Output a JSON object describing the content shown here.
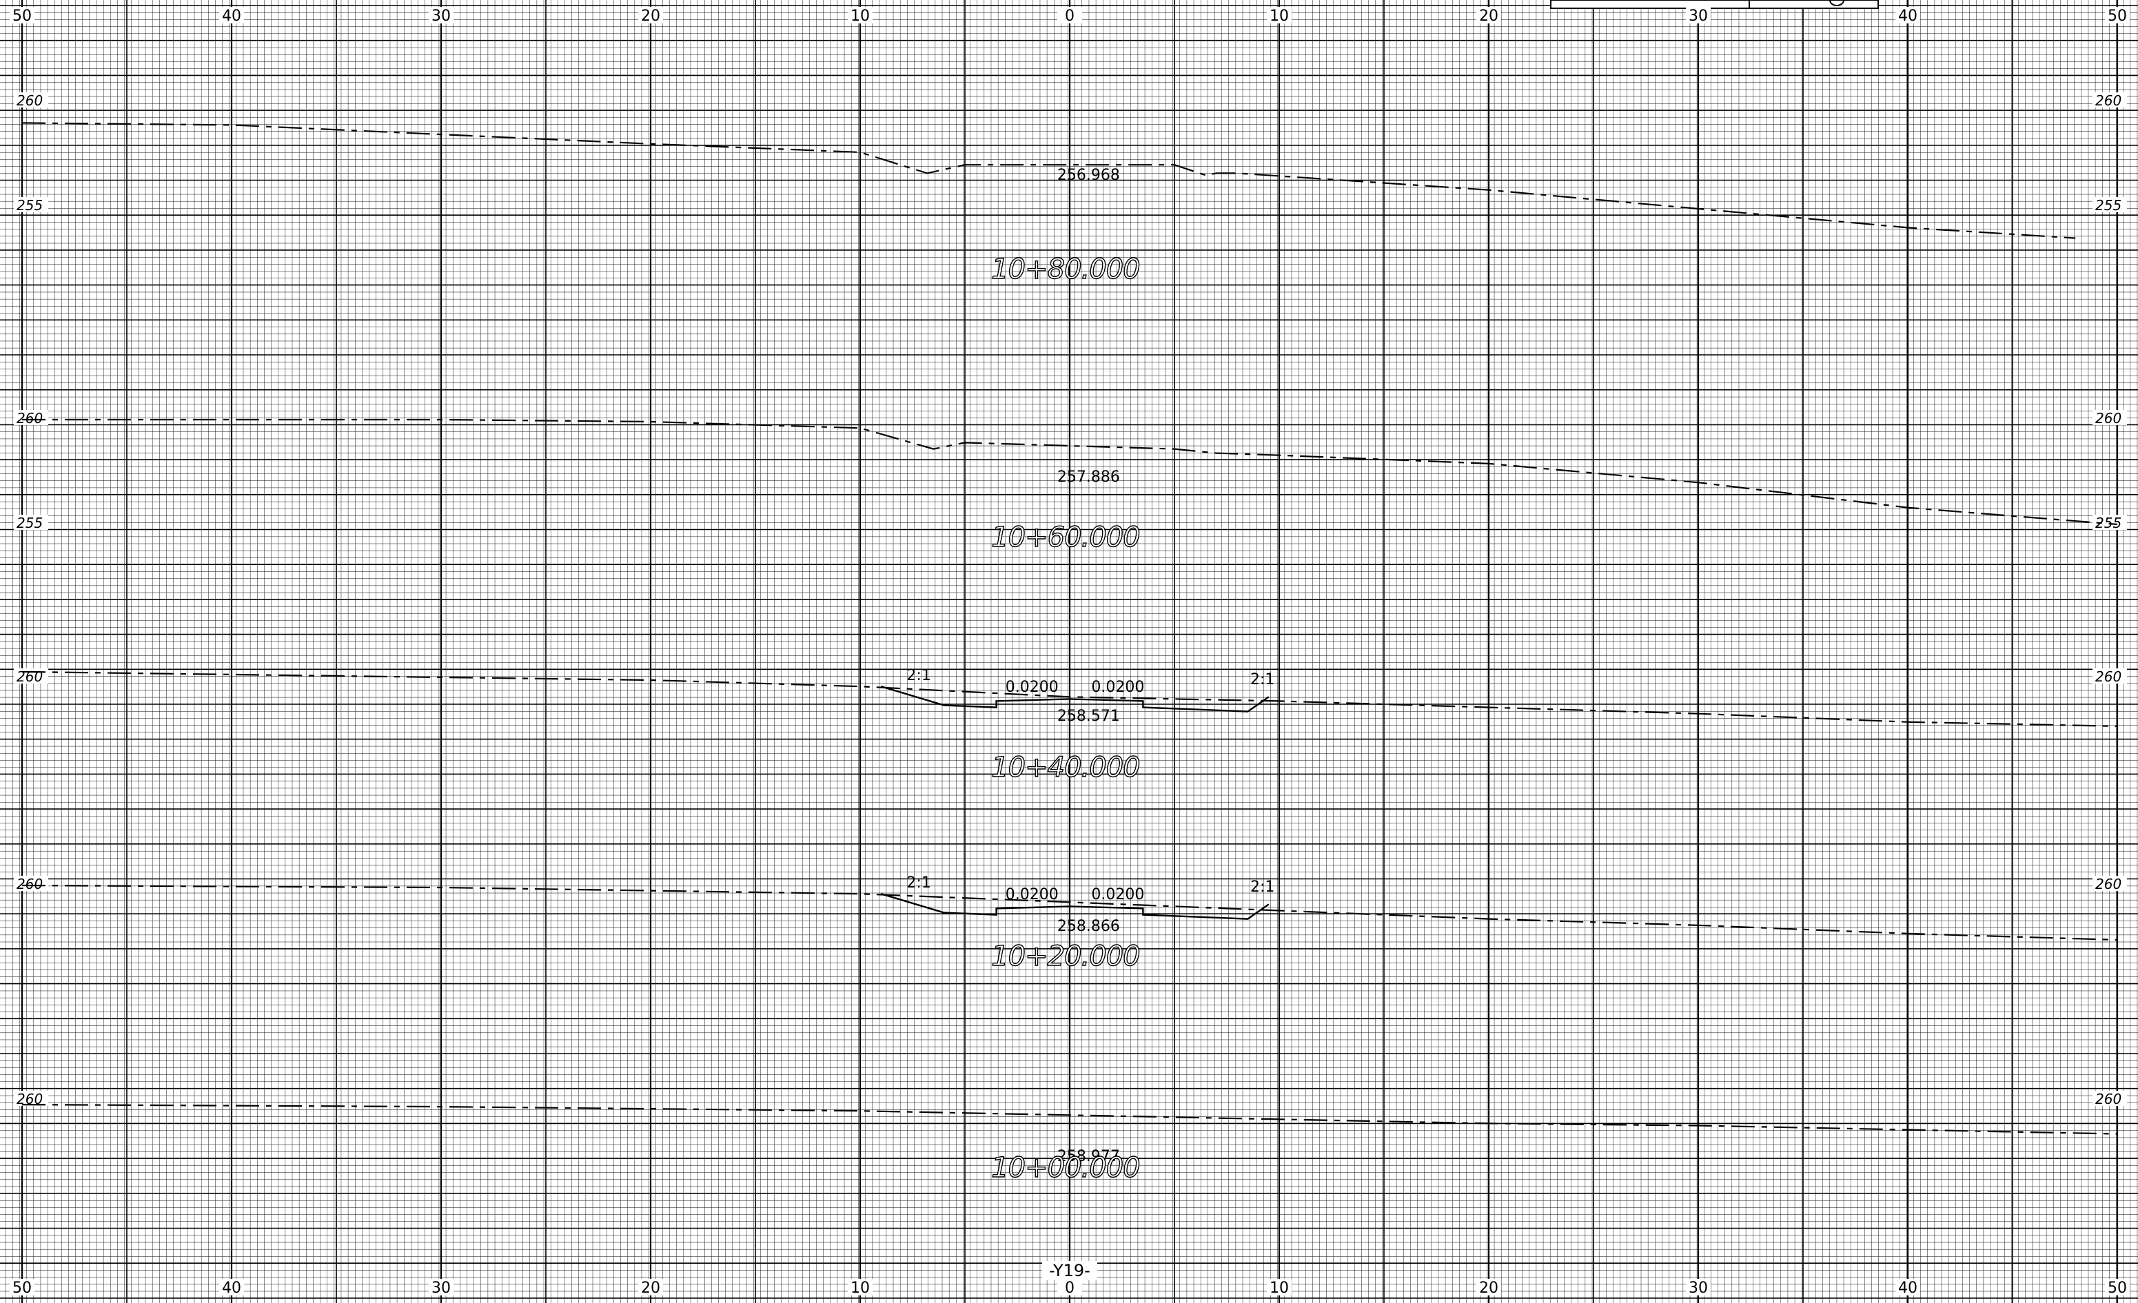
{
  "sheet": {
    "offset_ticks": [
      "50",
      "40",
      "30",
      "20",
      "10",
      "0",
      "10",
      "20",
      "30",
      "40",
      "50"
    ],
    "alignment_label": "-Y19-"
  },
  "sections": [
    {
      "station": "10+80.000",
      "centerline_elevation": "256.968",
      "elev_labels": [
        "260",
        "255"
      ],
      "template": null,
      "ground": [
        [
          -50,
          259.0
        ],
        [
          -40,
          258.9
        ],
        [
          -20,
          258.0
        ],
        [
          -10,
          257.6
        ],
        [
          -6.8,
          256.6
        ],
        [
          -5,
          257.0
        ],
        [
          5,
          257.0
        ],
        [
          6.5,
          256.5
        ],
        [
          7,
          256.6
        ],
        [
          8,
          256.6
        ],
        [
          20,
          255.8
        ],
        [
          30,
          254.9
        ],
        [
          40,
          254.0
        ],
        [
          48,
          253.5
        ]
      ]
    },
    {
      "station": "10+60.000",
      "centerline_elevation": "257.886",
      "elev_labels": [
        "260",
        "255"
      ],
      "template": null,
      "ground": [
        [
          -50,
          260.0
        ],
        [
          -30,
          260.0
        ],
        [
          -20,
          259.9
        ],
        [
          -10,
          259.6
        ],
        [
          -6.5,
          258.6
        ],
        [
          -5,
          258.9
        ],
        [
          5,
          258.6
        ],
        [
          7,
          258.4
        ],
        [
          10,
          258.3
        ],
        [
          20,
          257.9
        ],
        [
          30,
          257.0
        ],
        [
          40,
          255.8
        ],
        [
          50,
          255.0
        ]
      ]
    },
    {
      "station": "10+40.000",
      "centerline_elevation": "258.571",
      "elev_labels": [
        "260",
        "260"
      ],
      "template": {
        "cross_slope_left": "0.0200",
        "cross_slope_right": "0.0200",
        "side_slope_left": "2:1",
        "side_slope_right": "2:1"
      },
      "ground": [
        [
          -50,
          260.3
        ],
        [
          -20,
          259.9
        ],
        [
          -10,
          259.6
        ],
        [
          0,
          259.1
        ],
        [
          10,
          258.9
        ],
        [
          20,
          258.6
        ],
        [
          30,
          258.3
        ],
        [
          40,
          257.9
        ],
        [
          50,
          257.7
        ]
      ]
    },
    {
      "station": "10+20.000",
      "centerline_elevation": "258.866",
      "elev_labels": [
        "260",
        "260"
      ],
      "template": {
        "cross_slope_left": "0.0200",
        "cross_slope_right": "0.0200",
        "side_slope_left": "2:1",
        "side_slope_right": "2:1"
      },
      "ground": [
        [
          -50,
          260.0
        ],
        [
          -30,
          259.9
        ],
        [
          -10,
          259.6
        ],
        [
          0,
          259.2
        ],
        [
          10,
          258.8
        ],
        [
          20,
          258.4
        ],
        [
          30,
          258.1
        ],
        [
          40,
          257.7
        ],
        [
          50,
          257.4
        ]
      ]
    },
    {
      "station": "10+00.000",
      "centerline_elevation": "258.977",
      "elev_labels": [
        "260",
        "260"
      ],
      "template": null,
      "ground": [
        [
          -50,
          259.8
        ],
        [
          -30,
          259.7
        ],
        [
          -10,
          259.5
        ],
        [
          0,
          259.3
        ],
        [
          10,
          259.1
        ],
        [
          20,
          258.9
        ],
        [
          30,
          258.8
        ],
        [
          40,
          258.6
        ],
        [
          50,
          258.4
        ]
      ]
    }
  ]
}
